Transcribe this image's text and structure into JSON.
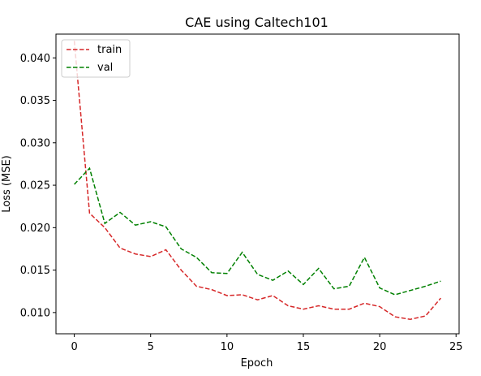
{
  "chart_data": {
    "type": "line",
    "title": "CAE using Caltech101",
    "xlabel": "Epoch",
    "ylabel": "Loss (MSE)",
    "xlim": [
      -1.2,
      25.2
    ],
    "ylim": [
      0.0075,
      0.0428
    ],
    "xticks": [
      0,
      5,
      10,
      15,
      20,
      25
    ],
    "yticks": [
      0.01,
      0.015,
      0.02,
      0.025,
      0.03,
      0.035,
      0.04
    ],
    "ytick_labels": [
      "0.010",
      "0.015",
      "0.020",
      "0.025",
      "0.030",
      "0.035",
      "0.040"
    ],
    "grid": false,
    "legend": "top-left",
    "x": [
      0,
      1,
      2,
      3,
      4,
      5,
      6,
      7,
      8,
      9,
      10,
      11,
      12,
      13,
      14,
      15,
      16,
      17,
      18,
      19,
      20,
      21,
      22,
      23,
      24
    ],
    "series": [
      {
        "name": "train",
        "color": "#d62728",
        "linestyle": "dashed",
        "values": [
          0.042,
          0.0217,
          0.02,
          0.0176,
          0.0169,
          0.0166,
          0.0174,
          0.015,
          0.0131,
          0.0127,
          0.012,
          0.0121,
          0.0115,
          0.012,
          0.0108,
          0.0104,
          0.0108,
          0.0104,
          0.0104,
          0.0111,
          0.0107,
          0.0095,
          0.0092,
          0.0096,
          0.0117
        ]
      },
      {
        "name": "val",
        "color": "#008000",
        "linestyle": "dashed",
        "values": [
          0.0251,
          0.027,
          0.0205,
          0.0218,
          0.0203,
          0.0207,
          0.0201,
          0.0175,
          0.0165,
          0.0147,
          0.0146,
          0.0171,
          0.0145,
          0.0138,
          0.0149,
          0.0133,
          0.0152,
          0.0128,
          0.0131,
          0.0165,
          0.0129,
          0.0121,
          0.0126,
          0.0131,
          0.0137
        ]
      }
    ]
  }
}
